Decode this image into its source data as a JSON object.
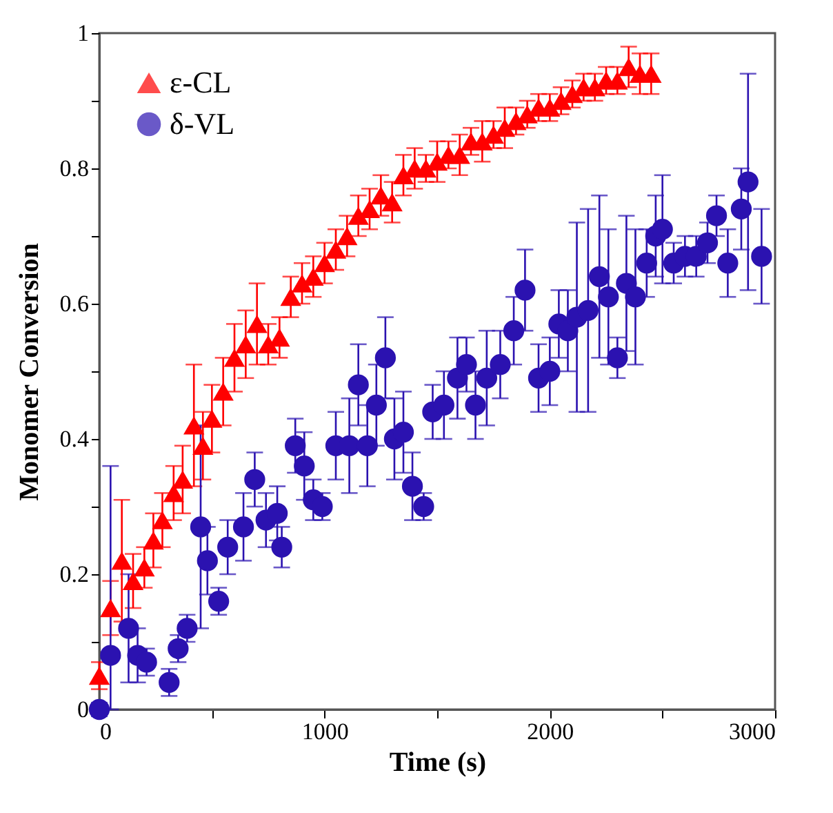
{
  "chart_data": {
    "type": "scatter",
    "xlabel": "Time (s)",
    "ylabel": "Monomer Conversion",
    "xlim": [
      0,
      3000
    ],
    "ylim": [
      0,
      1
    ],
    "xticks": [
      0,
      {
        "value": 500,
        "label": null
      },
      1000,
      {
        "value": 1500,
        "label": null
      },
      2000,
      {
        "value": 2500,
        "label": null
      },
      3000
    ],
    "yticks": [
      0,
      {
        "value": 0.1,
        "label": null
      },
      0.2,
      {
        "value": 0.3,
        "label": null
      },
      0.4,
      {
        "value": 0.5,
        "label": null
      },
      0.6,
      {
        "value": 0.7,
        "label": null
      },
      0.8,
      {
        "value": 0.9,
        "label": null
      },
      1
    ],
    "grid": false,
    "legend": "top left",
    "series": [
      {
        "name": "ε-CL",
        "color": "#ff0000",
        "marker": "triangle",
        "x": [
          0,
          50,
          100,
          150,
          200,
          240,
          280,
          330,
          370,
          420,
          460,
          500,
          550,
          600,
          650,
          700,
          750,
          800,
          850,
          900,
          950,
          1000,
          1050,
          1100,
          1150,
          1200,
          1250,
          1300,
          1350,
          1400,
          1450,
          1500,
          1550,
          1600,
          1650,
          1700,
          1750,
          1800,
          1850,
          1900,
          1950,
          2000,
          2050,
          2100,
          2150,
          2200,
          2250,
          2300,
          2350,
          2400,
          2450
        ],
        "values": [
          0.05,
          0.15,
          0.22,
          0.19,
          0.21,
          0.25,
          0.28,
          0.32,
          0.34,
          0.42,
          0.39,
          0.43,
          0.47,
          0.52,
          0.54,
          0.57,
          0.54,
          0.55,
          0.61,
          0.63,
          0.64,
          0.66,
          0.68,
          0.7,
          0.73,
          0.74,
          0.76,
          0.75,
          0.79,
          0.8,
          0.8,
          0.81,
          0.82,
          0.82,
          0.84,
          0.84,
          0.85,
          0.86,
          0.87,
          0.88,
          0.89,
          0.89,
          0.9,
          0.91,
          0.92,
          0.92,
          0.93,
          0.93,
          0.95,
          0.94,
          0.94
        ],
        "errors": [
          0.02,
          0.04,
          0.09,
          0.04,
          0.03,
          0.04,
          0.04,
          0.04,
          0.05,
          0.09,
          0.05,
          0.05,
          0.05,
          0.05,
          0.05,
          0.06,
          0.03,
          0.03,
          0.03,
          0.03,
          0.03,
          0.03,
          0.03,
          0.03,
          0.03,
          0.03,
          0.03,
          0.03,
          0.03,
          0.03,
          0.02,
          0.03,
          0.02,
          0.03,
          0.02,
          0.03,
          0.02,
          0.03,
          0.02,
          0.02,
          0.02,
          0.02,
          0.02,
          0.02,
          0.02,
          0.02,
          0.02,
          0.02,
          0.03,
          0.03,
          0.03
        ]
      },
      {
        "name": "δ-VL",
        "color": "#2b12b0",
        "marker": "circle",
        "x": [
          0,
          50,
          130,
          170,
          210,
          310,
          350,
          390,
          450,
          480,
          530,
          570,
          640,
          690,
          740,
          790,
          810,
          870,
          910,
          950,
          990,
          1050,
          1110,
          1150,
          1190,
          1230,
          1270,
          1310,
          1350,
          1390,
          1440,
          1480,
          1530,
          1590,
          1630,
          1670,
          1720,
          1780,
          1840,
          1890,
          1950,
          2000,
          2040,
          2080,
          2120,
          2170,
          2220,
          2260,
          2300,
          2340,
          2380,
          2430,
          2470,
          2500,
          2550,
          2600,
          2650,
          2700,
          2740,
          2790,
          2850,
          2880,
          2940
        ],
        "values": [
          0,
          0.08,
          0.12,
          0.08,
          0.07,
          0.04,
          0.09,
          0.12,
          0.27,
          0.22,
          0.16,
          0.24,
          0.27,
          0.34,
          0.28,
          0.29,
          0.24,
          0.39,
          0.36,
          0.31,
          0.3,
          0.39,
          0.39,
          0.48,
          0.39,
          0.45,
          0.52,
          0.4,
          0.41,
          0.33,
          0.3,
          0.44,
          0.45,
          0.49,
          0.51,
          0.45,
          0.49,
          0.51,
          0.56,
          0.62,
          0.49,
          0.5,
          0.57,
          0.56,
          0.58,
          0.59,
          0.64,
          0.61,
          0.52,
          0.63,
          0.61,
          0.66,
          0.7,
          0.71,
          0.66,
          0.67,
          0.67,
          0.69,
          0.73,
          0.66,
          0.74,
          0.78,
          0.67
        ],
        "errors": [
          0.01,
          [
            0,
            0.36
          ],
          0.08,
          0.04,
          0.02,
          0.02,
          0.02,
          0.02,
          0.15,
          0.05,
          0.02,
          0.04,
          0.05,
          0.04,
          0.04,
          0.04,
          0.03,
          0.04,
          0.05,
          0.03,
          0.02,
          0.05,
          0.07,
          0.06,
          0.06,
          0.06,
          0.06,
          0.06,
          0.06,
          0.05,
          0.02,
          0.04,
          0.05,
          0.06,
          0.04,
          0.05,
          0.07,
          0.05,
          0.05,
          0.06,
          0.05,
          0.05,
          0.05,
          0.06,
          0.14,
          0.15,
          0.12,
          0.1,
          0.03,
          0.1,
          0.1,
          0.05,
          0.06,
          0.08,
          0.03,
          0.03,
          0.03,
          0.03,
          0.03,
          0.05,
          0.06,
          0.16,
          0.07
        ]
      }
    ]
  }
}
